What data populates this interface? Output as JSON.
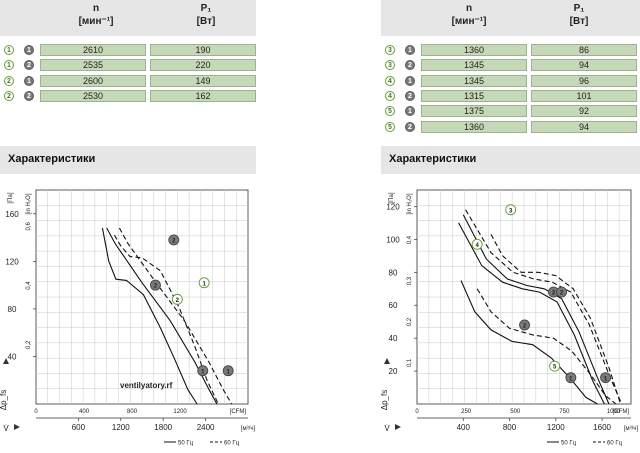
{
  "table_left": {
    "col_n": [
      "n",
      "[мин⁻¹]"
    ],
    "col_p": [
      "P₁",
      "[Вт]"
    ],
    "rows": [
      {
        "curve": "1",
        "mode": "1",
        "n": "2610",
        "p": "190"
      },
      {
        "curve": "1",
        "mode": "2",
        "n": "2535",
        "p": "220"
      },
      {
        "curve": "2",
        "mode": "1",
        "n": "2600",
        "p": "149"
      },
      {
        "curve": "2",
        "mode": "2",
        "n": "2530",
        "p": "162"
      }
    ]
  },
  "table_right": {
    "col_n": [
      "n",
      "[мин⁻¹]"
    ],
    "col_p": [
      "P₁",
      "[Вт]"
    ],
    "rows": [
      {
        "curve": "3",
        "mode": "1",
        "n": "1360",
        "p": "86"
      },
      {
        "curve": "3",
        "mode": "2",
        "n": "1345",
        "p": "94"
      },
      {
        "curve": "4",
        "mode": "1",
        "n": "1345",
        "p": "96"
      },
      {
        "curve": "4",
        "mode": "2",
        "n": "1315",
        "p": "101"
      },
      {
        "curve": "5",
        "mode": "1",
        "n": "1375",
        "p": "92"
      },
      {
        "curve": "5",
        "mode": "2",
        "n": "1360",
        "p": "94"
      }
    ]
  },
  "section_title_left": "Характеристики",
  "section_title_right": "Характеристики",
  "watermark": "ventilyatory.rf",
  "colors": {
    "line": "#111111",
    "grid": "#c8c8c8",
    "table_cell": "#c5d9b8",
    "header_bg": "#e6e6e6",
    "marker_green": "#5e9a32"
  },
  "chart_data": [
    {
      "type": "line",
      "title": "",
      "ylabel": "[Па]",
      "ylabel2": "[in H₂O]",
      "y_axis_symbol": "Δp_fs",
      "x_axis_symbol": "V̇",
      "xlabel_cfm": "[CFM]",
      "xlabel_m3h": "[м³/ч]",
      "xlim": [
        0,
        3000
      ],
      "ylim": [
        0,
        180
      ],
      "yticks": [
        40,
        80,
        120,
        160
      ],
      "ytick_labels": [
        "40",
        "80",
        "120",
        "160"
      ],
      "y2ticks_pa": [
        49.8,
        99.6,
        149.4
      ],
      "y2tick_labels": [
        "0,2",
        "0,4",
        "0,6"
      ],
      "cfm_ticks_m3h": [
        679.6,
        1359.2,
        2038.8
      ],
      "cfm_tick_labels": [
        "400",
        "800",
        "1200"
      ],
      "m3h_ticks": [
        600,
        1200,
        1800,
        2400
      ],
      "m3h_tick_labels": [
        "600",
        "1200",
        "1800",
        "2400"
      ],
      "legend": [
        {
          "style": "solid",
          "label": "50 Гц"
        },
        {
          "style": "dashed",
          "label": "60 Гц"
        }
      ],
      "series": [
        {
          "id": "1",
          "style": "solid",
          "x": [
            1000,
            1120,
            1500,
            1900,
            2250,
            2450,
            2560
          ],
          "y": [
            148,
            135,
            102,
            70,
            35,
            12,
            0
          ]
        },
        {
          "id": "1",
          "style": "dashed",
          "x": [
            1180,
            1300,
            1700,
            2100,
            2450,
            2650,
            2770
          ],
          "y": [
            148,
            135,
            102,
            70,
            35,
            12,
            0
          ]
        },
        {
          "id": "2",
          "style": "solid",
          "x": [
            940,
            1030,
            1130,
            1280,
            1520,
            1760,
            1960,
            2150,
            2280
          ],
          "y": [
            148,
            120,
            105,
            104,
            92,
            64,
            38,
            12,
            0
          ]
        },
        {
          "id": "2",
          "style": "dashed",
          "x": [
            1110,
            1200,
            1330,
            1500,
            1760,
            2020,
            2250,
            2420,
            2580
          ],
          "y": [
            142,
            133,
            124,
            123,
            112,
            82,
            48,
            20,
            0
          ]
        }
      ],
      "markers": [
        {
          "label": "2",
          "kind": "filled",
          "x": 1950,
          "y": 138
        },
        {
          "label": "2",
          "kind": "filled",
          "x": 1690,
          "y": 100
        },
        {
          "label": "1",
          "kind": "filled",
          "x": 2360,
          "y": 28
        },
        {
          "label": "1",
          "kind": "filled",
          "x": 2720,
          "y": 28
        },
        {
          "label": "1",
          "kind": "outline",
          "x": 2380,
          "y": 102
        },
        {
          "label": "2",
          "kind": "outline",
          "x": 2000,
          "y": 88
        }
      ]
    },
    {
      "type": "line",
      "title": "",
      "ylabel": "[Па]",
      "ylabel2": "[in H₂O]",
      "y_axis_symbol": "Δp_fs",
      "x_axis_symbol": "V̇",
      "xlabel_cfm": "[CFM]",
      "xlabel_m3h": "[м³/ч]",
      "xlim": [
        0,
        1850
      ],
      "ylim": [
        0,
        130
      ],
      "yticks": [
        20,
        40,
        60,
        80,
        100,
        120
      ],
      "ytick_labels": [
        "20",
        "40",
        "60",
        "80",
        "100",
        "120"
      ],
      "y2ticks_pa": [
        24.9,
        49.8,
        74.7,
        99.6
      ],
      "y2tick_labels": [
        "0,1",
        "0,2",
        "0,3",
        "0,4"
      ],
      "cfm_ticks_m3h": [
        424.8,
        849.5,
        1274.3,
        1699.0
      ],
      "cfm_tick_labels": [
        "250",
        "500",
        "750",
        "1000"
      ],
      "m3h_ticks": [
        400,
        800,
        1200,
        1600
      ],
      "m3h_tick_labels": [
        "400",
        "800",
        "1200",
        "1600"
      ],
      "legend": [
        {
          "style": "solid",
          "label": "50 Гц"
        },
        {
          "style": "dashed",
          "label": "60 Гц"
        }
      ],
      "series": [
        {
          "id": "3",
          "style": "solid",
          "x": [
            400,
            600,
            780,
            950,
            1100,
            1250,
            1400,
            1560,
            1660
          ],
          "y": [
            115,
            88,
            76,
            72,
            70,
            64,
            44,
            16,
            0
          ]
        },
        {
          "id": "3",
          "style": "dashed",
          "x": [
            420,
            640,
            830,
            1010,
            1170,
            1330,
            1490,
            1660,
            1770
          ],
          "y": [
            118,
            92,
            80,
            76,
            74,
            68,
            48,
            18,
            0
          ]
        },
        {
          "id": "4",
          "style": "solid",
          "x": [
            360,
            560,
            740,
            910,
            1060,
            1210,
            1360,
            1520,
            1620
          ],
          "y": [
            110,
            84,
            74,
            70,
            68,
            62,
            42,
            14,
            0
          ]
        },
        {
          "id": "4",
          "style": "dashed",
          "x": [
            640,
            740,
            900,
            1050,
            1200,
            1350,
            1500,
            1660,
            1760
          ],
          "y": [
            103,
            90,
            80,
            80,
            78,
            70,
            52,
            22,
            0
          ]
        },
        {
          "id": "5",
          "style": "solid",
          "x": [
            380,
            500,
            640,
            820,
            1000,
            1160,
            1320,
            1460,
            1560
          ],
          "y": [
            75,
            56,
            45,
            38,
            36,
            28,
            16,
            4,
            0
          ]
        },
        {
          "id": "5",
          "style": "dashed",
          "x": [
            520,
            640,
            800,
            1000,
            1180,
            1340,
            1500,
            1630,
            1720
          ],
          "y": [
            70,
            56,
            46,
            42,
            40,
            32,
            18,
            5,
            0
          ]
        }
      ],
      "markers": [
        {
          "label": "2",
          "kind": "filled",
          "x": 1180,
          "y": 68
        },
        {
          "label": "2",
          "kind": "filled",
          "x": 1250,
          "y": 68
        },
        {
          "label": "2",
          "kind": "filled",
          "x": 930,
          "y": 48
        },
        {
          "label": "1",
          "kind": "filled",
          "x": 1330,
          "y": 16
        },
        {
          "label": "1",
          "kind": "filled",
          "x": 1630,
          "y": 16
        },
        {
          "label": "3",
          "kind": "outline",
          "x": 810,
          "y": 118
        },
        {
          "label": "4",
          "kind": "outline",
          "x": 520,
          "y": 97
        },
        {
          "label": "5",
          "kind": "outline",
          "x": 1190,
          "y": 23
        }
      ]
    }
  ]
}
